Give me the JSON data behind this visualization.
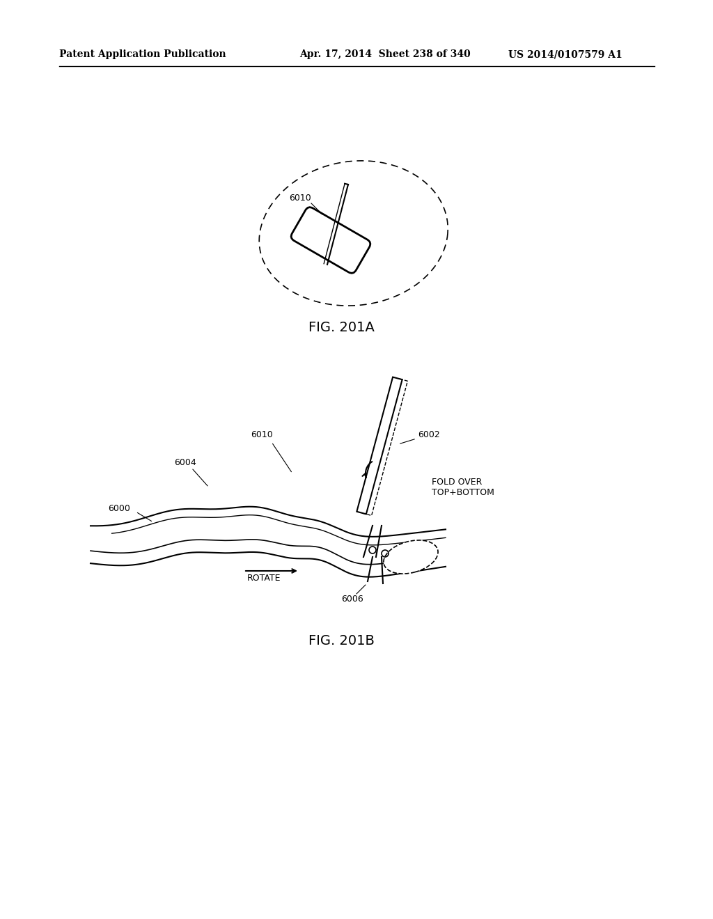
{
  "header_left": "Patent Application Publication",
  "header_middle": "Apr. 17, 2014  Sheet 238 of 340",
  "header_right": "US 2014/0107579 A1",
  "fig_label_a": "FIG. 201A",
  "fig_label_b": "FIG. 201B",
  "label_6010_a": "6010",
  "label_6010_b": "6010",
  "label_6000": "6000",
  "label_6002": "6002",
  "label_6004": "6004",
  "label_6006": "6006",
  "label_fold_over": "FOLD OVER\nTOP+BOTTOM",
  "label_rotate": "ROTATE",
  "bg_color": "#ffffff",
  "line_color": "#000000"
}
